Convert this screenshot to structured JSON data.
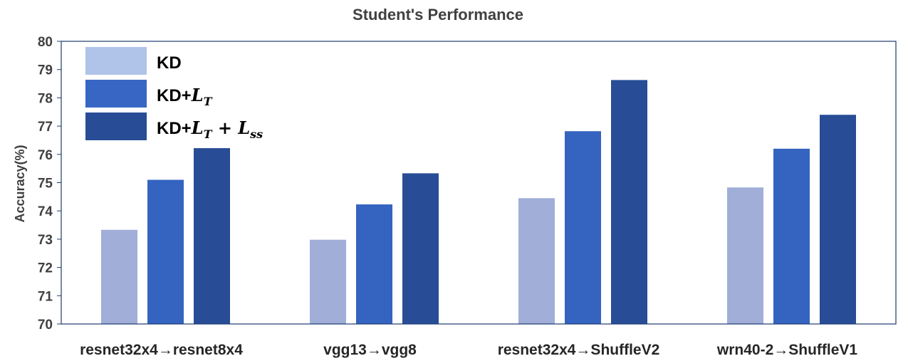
{
  "chart_data": {
    "type": "bar",
    "title": "Student's Performance",
    "xlabel": "",
    "ylabel": "Accuracy(%)",
    "ylim": [
      70,
      80
    ],
    "yticks": [
      70,
      71,
      72,
      73,
      74,
      75,
      76,
      77,
      78,
      79,
      80
    ],
    "grid": false,
    "legend_position": "top-left",
    "categories": [
      "resnet32x4→resnet8x4",
      "vgg13→vgg8",
      "resnet32x4→ShuffleV2",
      "wrn40-2→ShuffleV1"
    ],
    "series": [
      {
        "name": "KD",
        "legend_parts": [
          {
            "t": "KD",
            "math": false
          }
        ],
        "color": "#a0aed8",
        "legend_color": "#b0c3e8",
        "values": [
          73.33,
          72.98,
          74.45,
          74.83
        ]
      },
      {
        "name": "KD+L_T",
        "legend_parts": [
          {
            "t": "KD+",
            "math": false
          },
          {
            "t": "L",
            "math": true
          },
          {
            "t": "T",
            "math": true,
            "sub": true
          }
        ],
        "color": "#3464c0",
        "legend_color": "#3766c4",
        "values": [
          75.1,
          74.23,
          76.82,
          76.2
        ]
      },
      {
        "name": "KD+L_T + L_ss",
        "legend_parts": [
          {
            "t": "KD+",
            "math": false
          },
          {
            "t": "L",
            "math": true
          },
          {
            "t": "T",
            "math": true,
            "sub": true
          },
          {
            "t": " + ",
            "math": true
          },
          {
            "t": "L",
            "math": true
          },
          {
            "t": "ss",
            "math": true,
            "sub": true
          }
        ],
        "color": "#284d96",
        "legend_color": "#284d96",
        "values": [
          76.22,
          75.33,
          78.63,
          77.4
        ]
      }
    ]
  }
}
